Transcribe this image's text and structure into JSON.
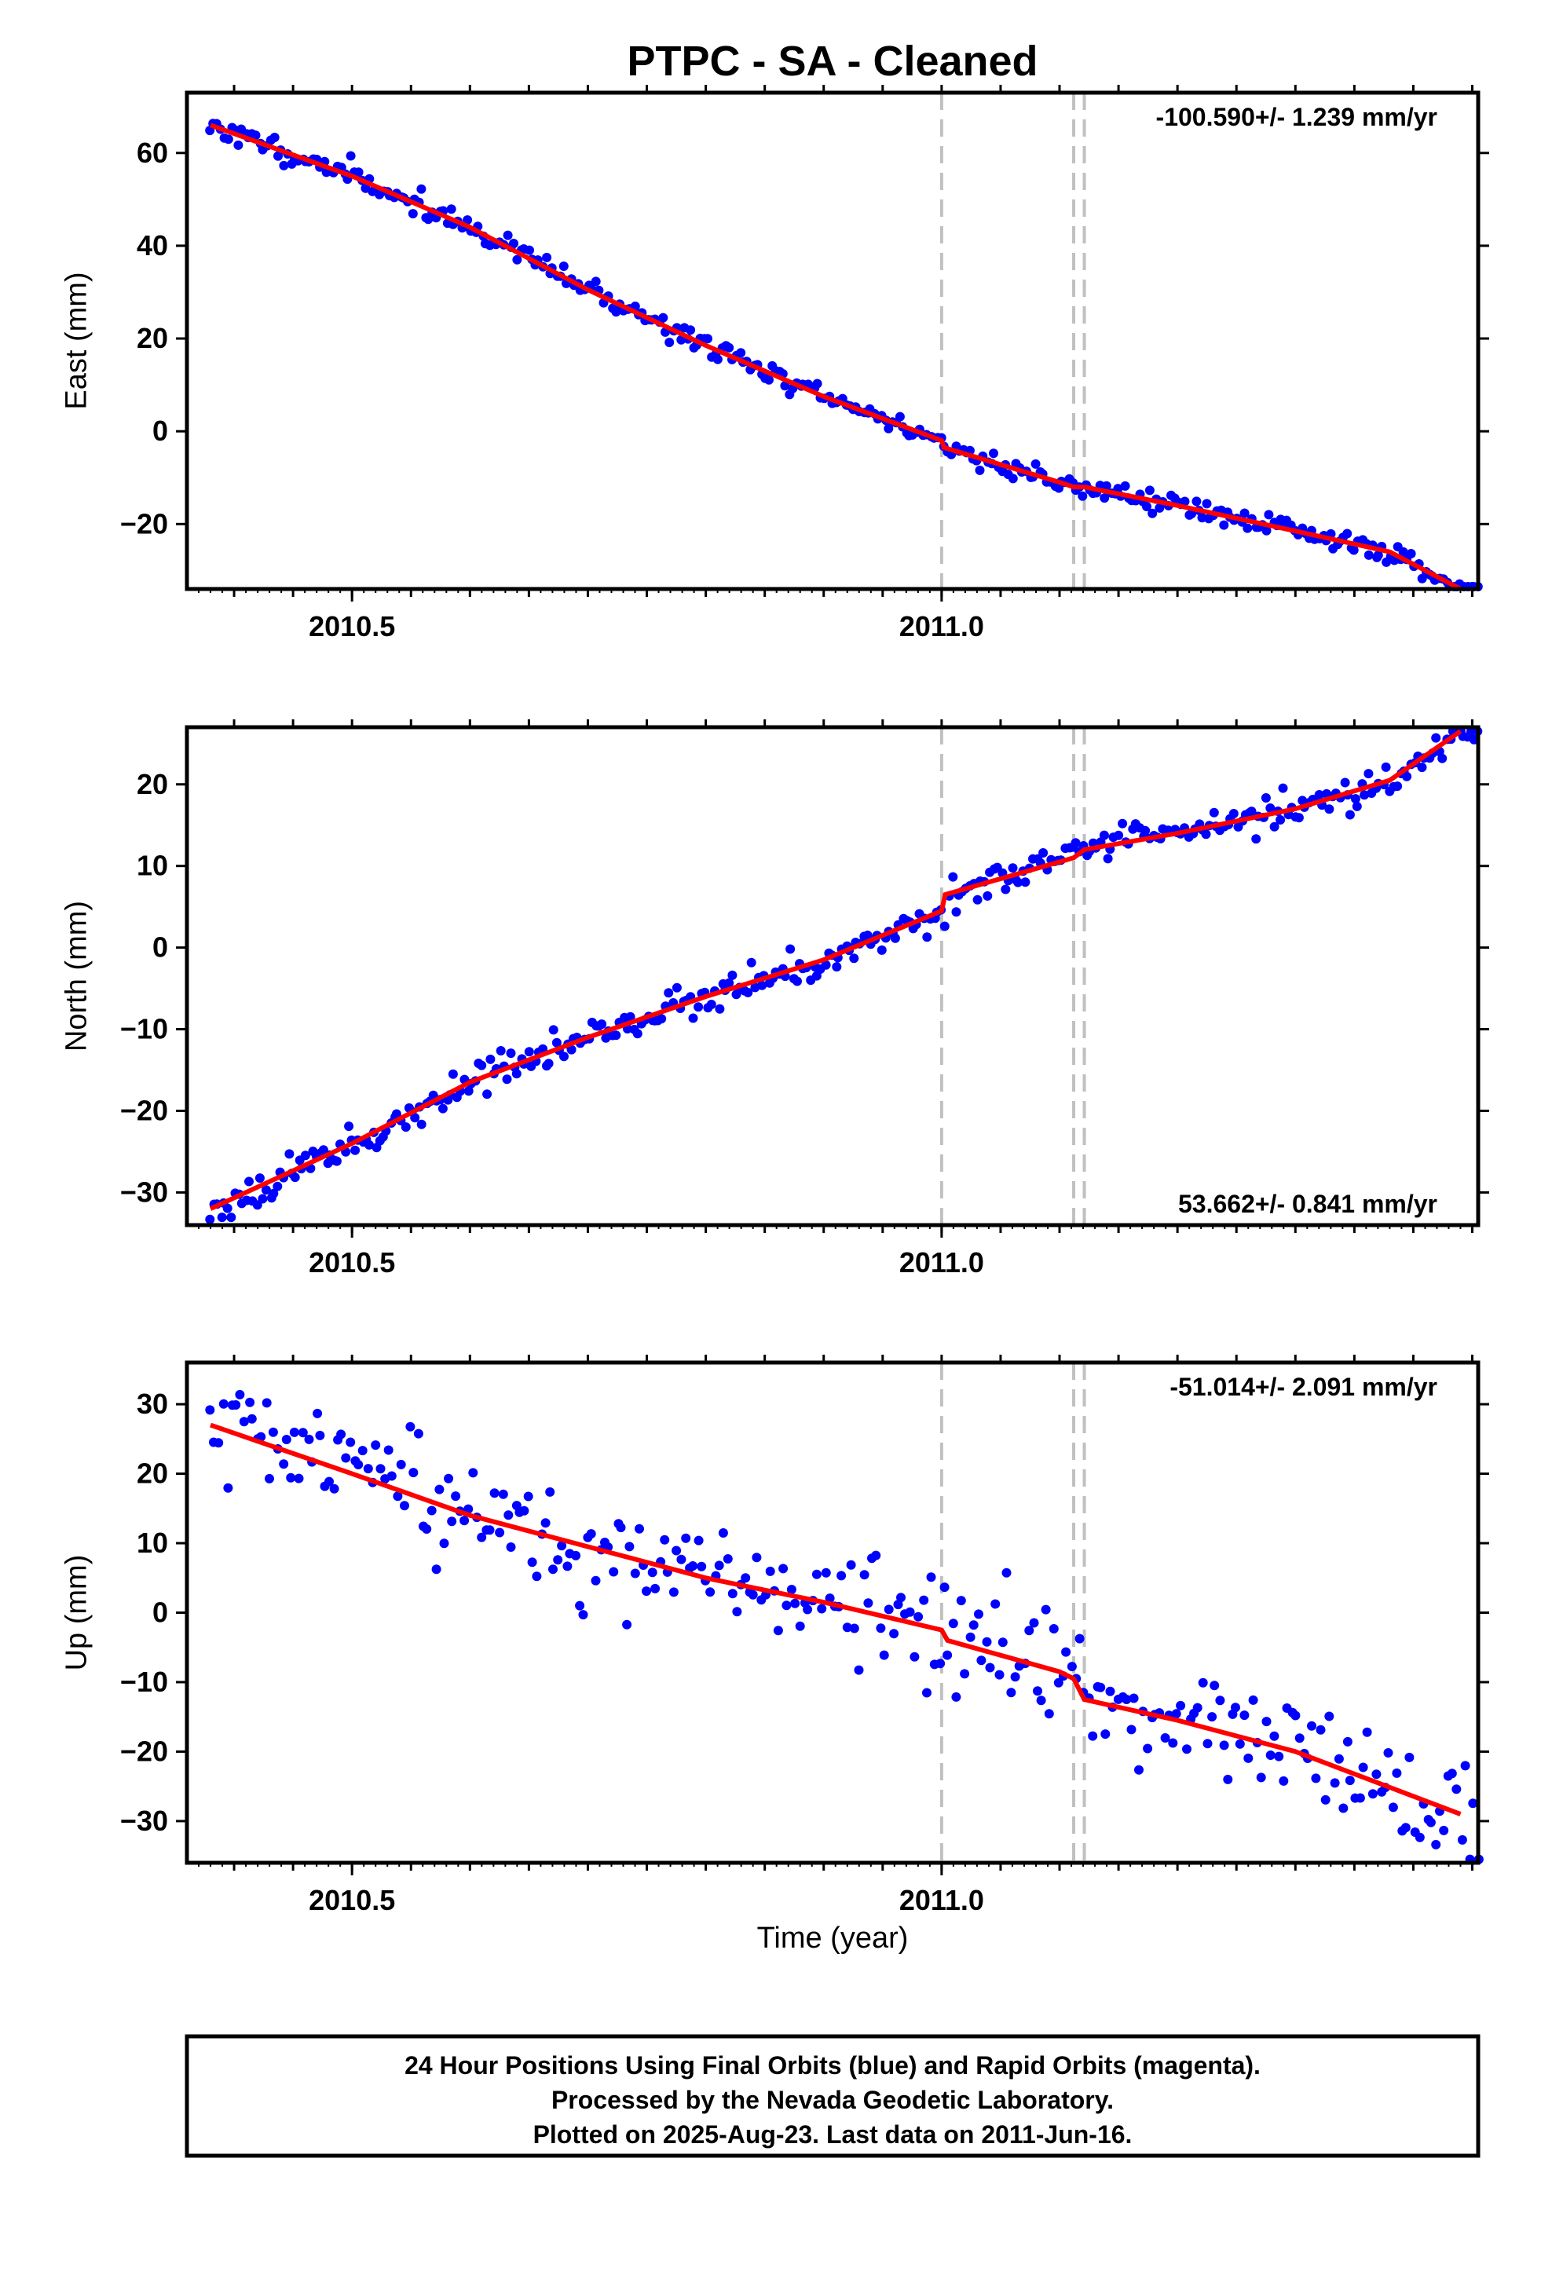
{
  "title": "PTPC  - SA - Cleaned",
  "footer": {
    "lines": [
      "24 Hour Positions Using Final Orbits (blue) and Rapid Orbits (magenta).",
      "Processed by the Nevada Geodetic Laboratory.",
      "Plotted on 2025-Aug-23. Last data on 2011-Jun-16."
    ]
  },
  "colors": {
    "data": "#0000ff",
    "model": "#ff0000",
    "event": "#c0c0c0",
    "frame": "#000000"
  },
  "chart_data": [
    {
      "type": "scatter",
      "ylabel": "East (mm)",
      "xlabel": "",
      "xlim": [
        2010.36,
        2011.455
      ],
      "ylim": [
        -34,
        73
      ],
      "yticks": [
        -20,
        0,
        20,
        40,
        60
      ],
      "xticks": [
        2010.5,
        2011.0
      ],
      "xtick_labels": [
        "2010.5",
        "2011.0"
      ],
      "rate_label": "-100.590+/- 1.239 mm/yr",
      "rate_position": "top-right",
      "events": [
        2011.0,
        2011.112,
        2011.121
      ],
      "model": [
        [
          2010.38,
          66
        ],
        [
          2010.5,
          55
        ],
        [
          2010.6,
          44
        ],
        [
          2010.7,
          30.5
        ],
        [
          2010.8,
          18.5
        ],
        [
          2010.9,
          7.5
        ],
        [
          2011.0,
          -2
        ],
        [
          2011.002,
          -3.5
        ],
        [
          2011.1,
          -11
        ],
        [
          2011.112,
          -12
        ],
        [
          2011.121,
          -12
        ],
        [
          2011.2,
          -16
        ],
        [
          2011.3,
          -21.5
        ],
        [
          2011.38,
          -26
        ],
        [
          2011.44,
          -34
        ]
      ],
      "points": {
        "start": 2010.38,
        "end": 2011.455,
        "count": 360,
        "noise": 1.2,
        "seed": 11
      }
    },
    {
      "type": "scatter",
      "ylabel": "North (mm)",
      "xlabel": "",
      "xlim": [
        2010.36,
        2011.455
      ],
      "ylim": [
        -34,
        27
      ],
      "yticks": [
        -30,
        -20,
        -10,
        0,
        10,
        20
      ],
      "xticks": [
        2010.5,
        2011.0
      ],
      "xtick_labels": [
        "2010.5",
        "2011.0"
      ],
      "rate_label": "53.662+/- 0.841 mm/yr",
      "rate_position": "bottom-right",
      "events": [
        2011.0,
        2011.112,
        2011.121
      ],
      "model": [
        [
          2010.38,
          -32
        ],
        [
          2010.5,
          -24
        ],
        [
          2010.6,
          -16.5
        ],
        [
          2010.7,
          -11
        ],
        [
          2010.8,
          -6
        ],
        [
          2010.9,
          -1.5
        ],
        [
          2011.0,
          4.5
        ],
        [
          2011.003,
          6.5
        ],
        [
          2011.1,
          10.5
        ],
        [
          2011.112,
          11
        ],
        [
          2011.121,
          12
        ],
        [
          2011.2,
          14
        ],
        [
          2011.3,
          17
        ],
        [
          2011.38,
          20.5
        ],
        [
          2011.44,
          26.5
        ]
      ],
      "points": {
        "start": 2010.38,
        "end": 2011.455,
        "count": 360,
        "noise": 1.0,
        "seed": 23
      }
    },
    {
      "type": "scatter",
      "ylabel": "Up (mm)",
      "xlabel": "Time (year)",
      "xlim": [
        2010.36,
        2011.455
      ],
      "ylim": [
        -36,
        36
      ],
      "yticks": [
        -30,
        -20,
        -10,
        0,
        10,
        20,
        30
      ],
      "xticks": [
        2010.5,
        2011.0
      ],
      "xtick_labels": [
        "2010.5",
        "2011.0"
      ],
      "rate_label": "-51.014+/- 2.091 mm/yr",
      "rate_position": "top-right",
      "events": [
        2011.0,
        2011.112,
        2011.121
      ],
      "model": [
        [
          2010.38,
          27
        ],
        [
          2010.5,
          20
        ],
        [
          2010.6,
          14
        ],
        [
          2010.7,
          9.5
        ],
        [
          2010.8,
          5
        ],
        [
          2010.9,
          1.5
        ],
        [
          2011.0,
          -2.5
        ],
        [
          2011.005,
          -4
        ],
        [
          2011.1,
          -8.5
        ],
        [
          2011.112,
          -9.5
        ],
        [
          2011.121,
          -12.5
        ],
        [
          2011.2,
          -15.5
        ],
        [
          2011.3,
          -20
        ],
        [
          2011.44,
          -29
        ]
      ],
      "points": {
        "start": 2010.38,
        "end": 2011.455,
        "count": 300,
        "noise": 4.0,
        "seed": 37
      }
    }
  ]
}
